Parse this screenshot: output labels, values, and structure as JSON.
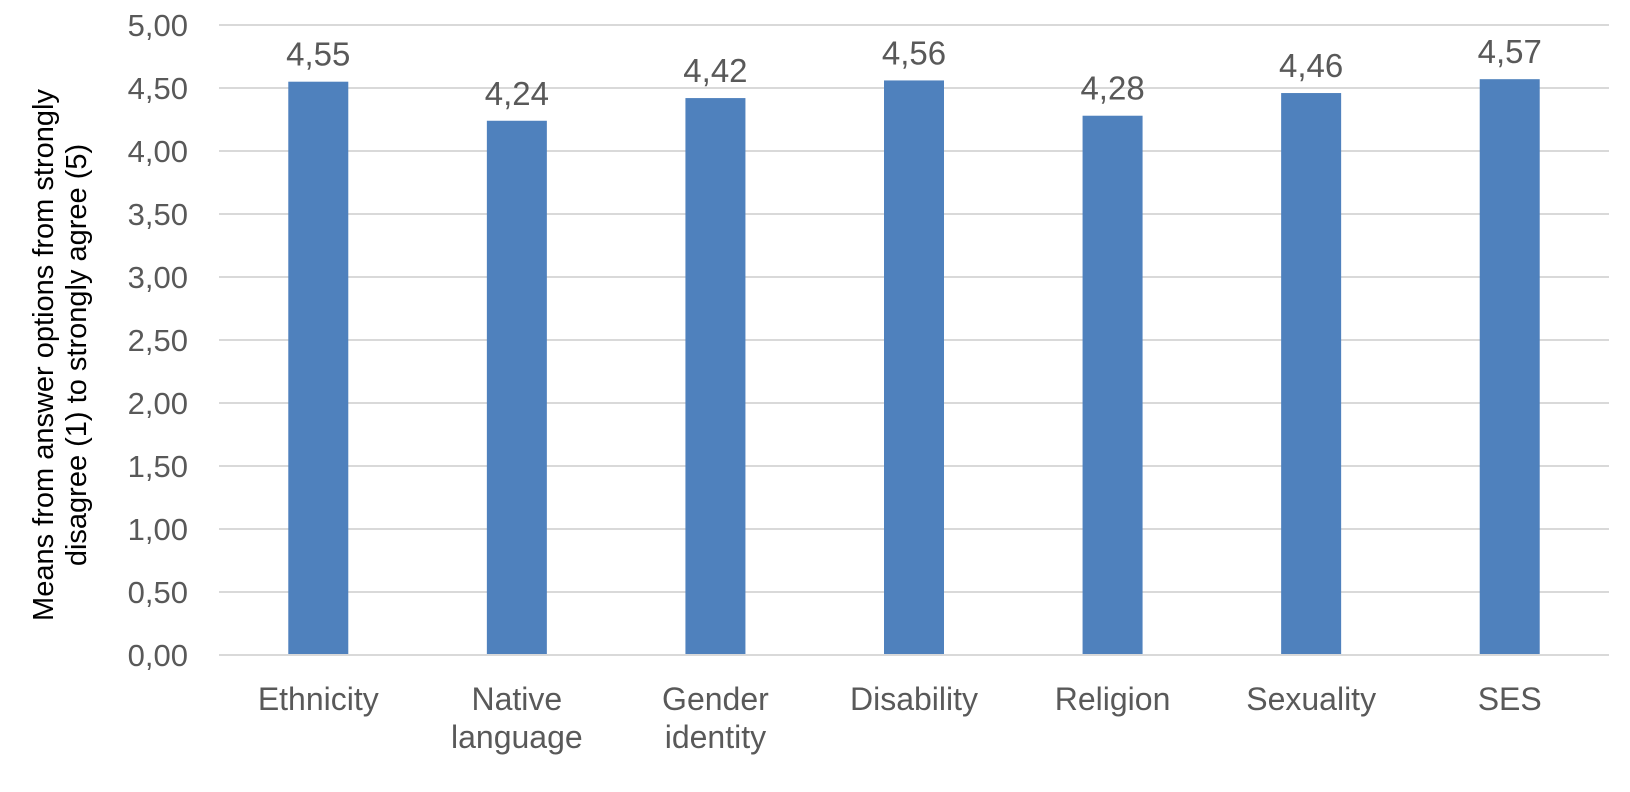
{
  "chart_data": {
    "type": "bar",
    "title": "",
    "xlabel": "",
    "ylabel_lines": [
      "Means from answer options from strongly",
      "disagree (1) to strongly agree (5)"
    ],
    "categories": [
      [
        "Ethnicity"
      ],
      [
        "Native",
        "language"
      ],
      [
        "Gender",
        "identity"
      ],
      [
        "Disability"
      ],
      [
        "Religion"
      ],
      [
        "Sexuality"
      ],
      [
        "SES"
      ]
    ],
    "values": [
      4.55,
      4.24,
      4.42,
      4.56,
      4.28,
      4.46,
      4.57
    ],
    "data_labels": [
      "4,55",
      "4,24",
      "4,42",
      "4,56",
      "4,28",
      "4,46",
      "4,57"
    ],
    "ylim": [
      0,
      5
    ],
    "yticks": [
      0,
      0.5,
      1,
      1.5,
      2,
      2.5,
      3,
      3.5,
      4,
      4.5,
      5
    ],
    "ytick_labels": [
      "0,00",
      "0,50",
      "1,00",
      "1,50",
      "2,00",
      "2,50",
      "3,00",
      "3,50",
      "4,00",
      "4,50",
      "5,00"
    ],
    "grid": true,
    "legend": "none",
    "colors": {
      "bar": "#4f81bd",
      "grid": "#d9d9d9",
      "text": "#595959"
    }
  }
}
